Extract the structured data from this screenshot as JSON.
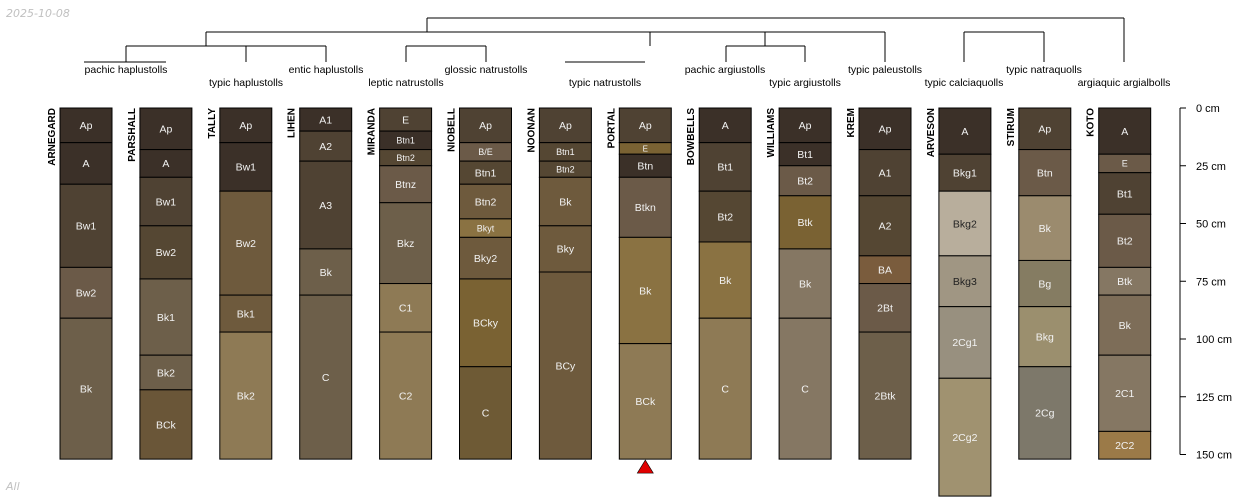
{
  "corner": {
    "top_left": "2025-10-08",
    "bottom_left": "All"
  },
  "depth_axis": {
    "unit": "cm",
    "ticks": [
      0,
      25,
      50,
      75,
      100,
      125,
      150
    ],
    "labels": [
      "0 cm",
      "25 cm",
      "50 cm",
      "75 cm",
      "100 cm",
      "125 cm",
      "150 cm"
    ]
  },
  "taxa": [
    {
      "label": "pachic haplustolls"
    },
    {
      "label": "typic haplustolls"
    },
    {
      "label": "entic haplustolls"
    },
    {
      "label": "leptic natrustolls"
    },
    {
      "label": "glossic natrustolls"
    },
    {
      "label": "typic natrustolls"
    },
    {
      "label": "pachic argiustolls"
    },
    {
      "label": "typic argiustolls"
    },
    {
      "label": "typic paleustolls"
    },
    {
      "label": "typic calciaquolls"
    },
    {
      "label": "typic natraquolls"
    },
    {
      "label": "argiaquic argialbolls"
    }
  ],
  "profiles": [
    {
      "name": "ARNEGARD",
      "horizons": [
        {
          "name": "Ap",
          "top": 0,
          "bottom": 15,
          "color": "#3b3028"
        },
        {
          "name": "A",
          "top": 15,
          "bottom": 33,
          "color": "#3b3028"
        },
        {
          "name": "Bw1",
          "top": 33,
          "bottom": 69,
          "color": "#4f4233"
        },
        {
          "name": "Bw2",
          "top": 69,
          "bottom": 91,
          "color": "#6b5a48"
        },
        {
          "name": "Bk",
          "top": 91,
          "bottom": 152,
          "color": "#6d5f4a"
        }
      ]
    },
    {
      "name": "PARSHALL",
      "horizons": [
        {
          "name": "Ap",
          "top": 0,
          "bottom": 18,
          "color": "#3b3028"
        },
        {
          "name": "A",
          "top": 18,
          "bottom": 30,
          "color": "#3b3028"
        },
        {
          "name": "Bw1",
          "top": 30,
          "bottom": 51,
          "color": "#4f4233"
        },
        {
          "name": "Bw2",
          "top": 51,
          "bottom": 74,
          "color": "#554733"
        },
        {
          "name": "Bk1",
          "top": 74,
          "bottom": 107,
          "color": "#6d5f4a"
        },
        {
          "name": "Bk2",
          "top": 107,
          "bottom": 122,
          "color": "#6d5f4a"
        },
        {
          "name": "BCk",
          "top": 122,
          "bottom": 152,
          "color": "#6a5638"
        }
      ]
    },
    {
      "name": "TALLY",
      "horizons": [
        {
          "name": "Ap",
          "top": 0,
          "bottom": 15,
          "color": "#3b3028"
        },
        {
          "name": "Bw1",
          "top": 15,
          "bottom": 36,
          "color": "#3b3028"
        },
        {
          "name": "Bw2",
          "top": 36,
          "bottom": 81,
          "color": "#6e5a3d"
        },
        {
          "name": "Bk1",
          "top": 81,
          "bottom": 97,
          "color": "#6e5a3d"
        },
        {
          "name": "Bk2",
          "top": 97,
          "bottom": 152,
          "color": "#8e7a55"
        }
      ]
    },
    {
      "name": "LIHEN",
      "horizons": [
        {
          "name": "A1",
          "top": 0,
          "bottom": 10,
          "color": "#3b3028"
        },
        {
          "name": "A2",
          "top": 10,
          "bottom": 23,
          "color": "#4f4233"
        },
        {
          "name": "A3",
          "top": 23,
          "bottom": 61,
          "color": "#4f4233"
        },
        {
          "name": "Bk",
          "top": 61,
          "bottom": 81,
          "color": "#6d5f4a"
        },
        {
          "name": "C",
          "top": 81,
          "bottom": 152,
          "color": "#6d5f4a"
        }
      ]
    },
    {
      "name": "MIRANDA",
      "horizons": [
        {
          "name": "E",
          "top": 0,
          "bottom": 10,
          "color": "#4f4233"
        },
        {
          "name": "Btn1",
          "top": 10,
          "bottom": 18,
          "color": "#3b3028"
        },
        {
          "name": "Btn2",
          "top": 18,
          "bottom": 25,
          "color": "#554733"
        },
        {
          "name": "Btnz",
          "top": 25,
          "bottom": 41,
          "color": "#6b5a48"
        },
        {
          "name": "Bkz",
          "top": 41,
          "bottom": 76,
          "color": "#6d5f4a"
        },
        {
          "name": "C1",
          "top": 76,
          "bottom": 97,
          "color": "#8e7a55"
        },
        {
          "name": "C2",
          "top": 97,
          "bottom": 152,
          "color": "#8e7a55"
        }
      ]
    },
    {
      "name": "NIOBELL",
      "horizons": [
        {
          "name": "Ap",
          "top": 0,
          "bottom": 15,
          "color": "#4f4233"
        },
        {
          "name": "B/E",
          "top": 15,
          "bottom": 23,
          "color": "#6b5a48"
        },
        {
          "name": "Btn1",
          "top": 23,
          "bottom": 33,
          "color": "#554733"
        },
        {
          "name": "Btn2",
          "top": 33,
          "bottom": 48,
          "color": "#6e5a3d"
        },
        {
          "name": "Bkyt",
          "top": 48,
          "bottom": 56,
          "color": "#8a7242"
        },
        {
          "name": "Bky2",
          "top": 56,
          "bottom": 74,
          "color": "#6e5a3d"
        },
        {
          "name": "BCky",
          "top": 74,
          "bottom": 112,
          "color": "#7a6233"
        },
        {
          "name": "C",
          "top": 112,
          "bottom": 152,
          "color": "#6e5a35"
        }
      ]
    },
    {
      "name": "NOONAN",
      "horizons": [
        {
          "name": "Ap",
          "top": 0,
          "bottom": 15,
          "color": "#4f4233"
        },
        {
          "name": "Btn1",
          "top": 15,
          "bottom": 23,
          "color": "#554733"
        },
        {
          "name": "Btn2",
          "top": 23,
          "bottom": 30,
          "color": "#554733"
        },
        {
          "name": "Bk",
          "top": 30,
          "bottom": 51,
          "color": "#6e5a3d"
        },
        {
          "name": "Bky",
          "top": 51,
          "bottom": 71,
          "color": "#6e5a3d"
        },
        {
          "name": "BCy",
          "top": 71,
          "bottom": 152,
          "color": "#6e5a3d"
        }
      ]
    },
    {
      "name": "PORTAL",
      "horizons": [
        {
          "name": "Ap",
          "top": 0,
          "bottom": 15,
          "color": "#4f4233"
        },
        {
          "name": "E",
          "top": 15,
          "bottom": 20,
          "color": "#7a6233"
        },
        {
          "name": "Btn",
          "top": 20,
          "bottom": 30,
          "color": "#3b3028"
        },
        {
          "name": "Btkn",
          "top": 30,
          "bottom": 56,
          "color": "#6b5a48"
        },
        {
          "name": "Bk",
          "top": 56,
          "bottom": 102,
          "color": "#8a7242"
        },
        {
          "name": "BCk",
          "top": 102,
          "bottom": 152,
          "color": "#8e7a55"
        }
      ],
      "truncated": true
    },
    {
      "name": "BOWBELLS",
      "horizons": [
        {
          "name": "A",
          "top": 0,
          "bottom": 15,
          "color": "#3b3028"
        },
        {
          "name": "Bt1",
          "top": 15,
          "bottom": 36,
          "color": "#4f4233"
        },
        {
          "name": "Bt2",
          "top": 36,
          "bottom": 58,
          "color": "#554733"
        },
        {
          "name": "Bk",
          "top": 58,
          "bottom": 91,
          "color": "#8a7242"
        },
        {
          "name": "C",
          "top": 91,
          "bottom": 152,
          "color": "#8e7a55"
        }
      ]
    },
    {
      "name": "WILLIAMS",
      "horizons": [
        {
          "name": "Ap",
          "top": 0,
          "bottom": 15,
          "color": "#3b3028"
        },
        {
          "name": "Bt1",
          "top": 15,
          "bottom": 25,
          "color": "#3b3028"
        },
        {
          "name": "Bt2",
          "top": 25,
          "bottom": 38,
          "color": "#6b5a48"
        },
        {
          "name": "Btk",
          "top": 38,
          "bottom": 61,
          "color": "#7a6233"
        },
        {
          "name": "Bk",
          "top": 61,
          "bottom": 91,
          "color": "#857763"
        },
        {
          "name": "C",
          "top": 91,
          "bottom": 152,
          "color": "#857763"
        }
      ]
    },
    {
      "name": "KREM",
      "horizons": [
        {
          "name": "Ap",
          "top": 0,
          "bottom": 18,
          "color": "#3b3028"
        },
        {
          "name": "A1",
          "top": 18,
          "bottom": 38,
          "color": "#4f4233"
        },
        {
          "name": "A2",
          "top": 38,
          "bottom": 64,
          "color": "#554733"
        },
        {
          "name": "BA",
          "top": 64,
          "bottom": 76,
          "color": "#7a5c3d"
        },
        {
          "name": "2Bt",
          "top": 76,
          "bottom": 97,
          "color": "#6b5a48"
        },
        {
          "name": "2Btk",
          "top": 97,
          "bottom": 152,
          "color": "#6d5f4a"
        }
      ]
    },
    {
      "name": "ARVESON",
      "horizons": [
        {
          "name": "A",
          "top": 0,
          "bottom": 20,
          "color": "#3b3028"
        },
        {
          "name": "Bkg1",
          "top": 20,
          "bottom": 36,
          "color": "#4f4233"
        },
        {
          "name": "Bkg2",
          "top": 36,
          "bottom": 64,
          "color": "#b8ae9c"
        },
        {
          "name": "Bkg3",
          "top": 64,
          "bottom": 86,
          "color": "#a09683"
        },
        {
          "name": "2Cg1",
          "top": 86,
          "bottom": 117,
          "color": "#98907f"
        },
        {
          "name": "2Cg2",
          "top": 117,
          "bottom": 168,
          "color": "#a09270"
        }
      ]
    },
    {
      "name": "STIRUM",
      "horizons": [
        {
          "name": "Ap",
          "top": 0,
          "bottom": 18,
          "color": "#4f4233"
        },
        {
          "name": "Btn",
          "top": 18,
          "bottom": 38,
          "color": "#6b5a48"
        },
        {
          "name": "Bk",
          "top": 38,
          "bottom": 66,
          "color": "#9b8b6e"
        },
        {
          "name": "Bg",
          "top": 66,
          "bottom": 86,
          "color": "#857c62"
        },
        {
          "name": "Bkg",
          "top": 86,
          "bottom": 112,
          "color": "#9b8f6e"
        },
        {
          "name": "2Cg",
          "top": 112,
          "bottom": 152,
          "color": "#7d786a"
        }
      ]
    },
    {
      "name": "KOTO",
      "horizons": [
        {
          "name": "A",
          "top": 0,
          "bottom": 20,
          "color": "#3b3028"
        },
        {
          "name": "E",
          "top": 20,
          "bottom": 28,
          "color": "#6b5a48"
        },
        {
          "name": "Bt1",
          "top": 28,
          "bottom": 46,
          "color": "#4f4233"
        },
        {
          "name": "Bt2",
          "top": 46,
          "bottom": 69,
          "color": "#6b5a48"
        },
        {
          "name": "Btk",
          "top": 69,
          "bottom": 81,
          "color": "#857763"
        },
        {
          "name": "Bk",
          "top": 81,
          "bottom": 107,
          "color": "#7d6d58"
        },
        {
          "name": "2C1",
          "top": 107,
          "bottom": 140,
          "color": "#857763"
        },
        {
          "name": "2C2",
          "top": 140,
          "bottom": 152,
          "color": "#9b7a48"
        }
      ]
    }
  ]
}
